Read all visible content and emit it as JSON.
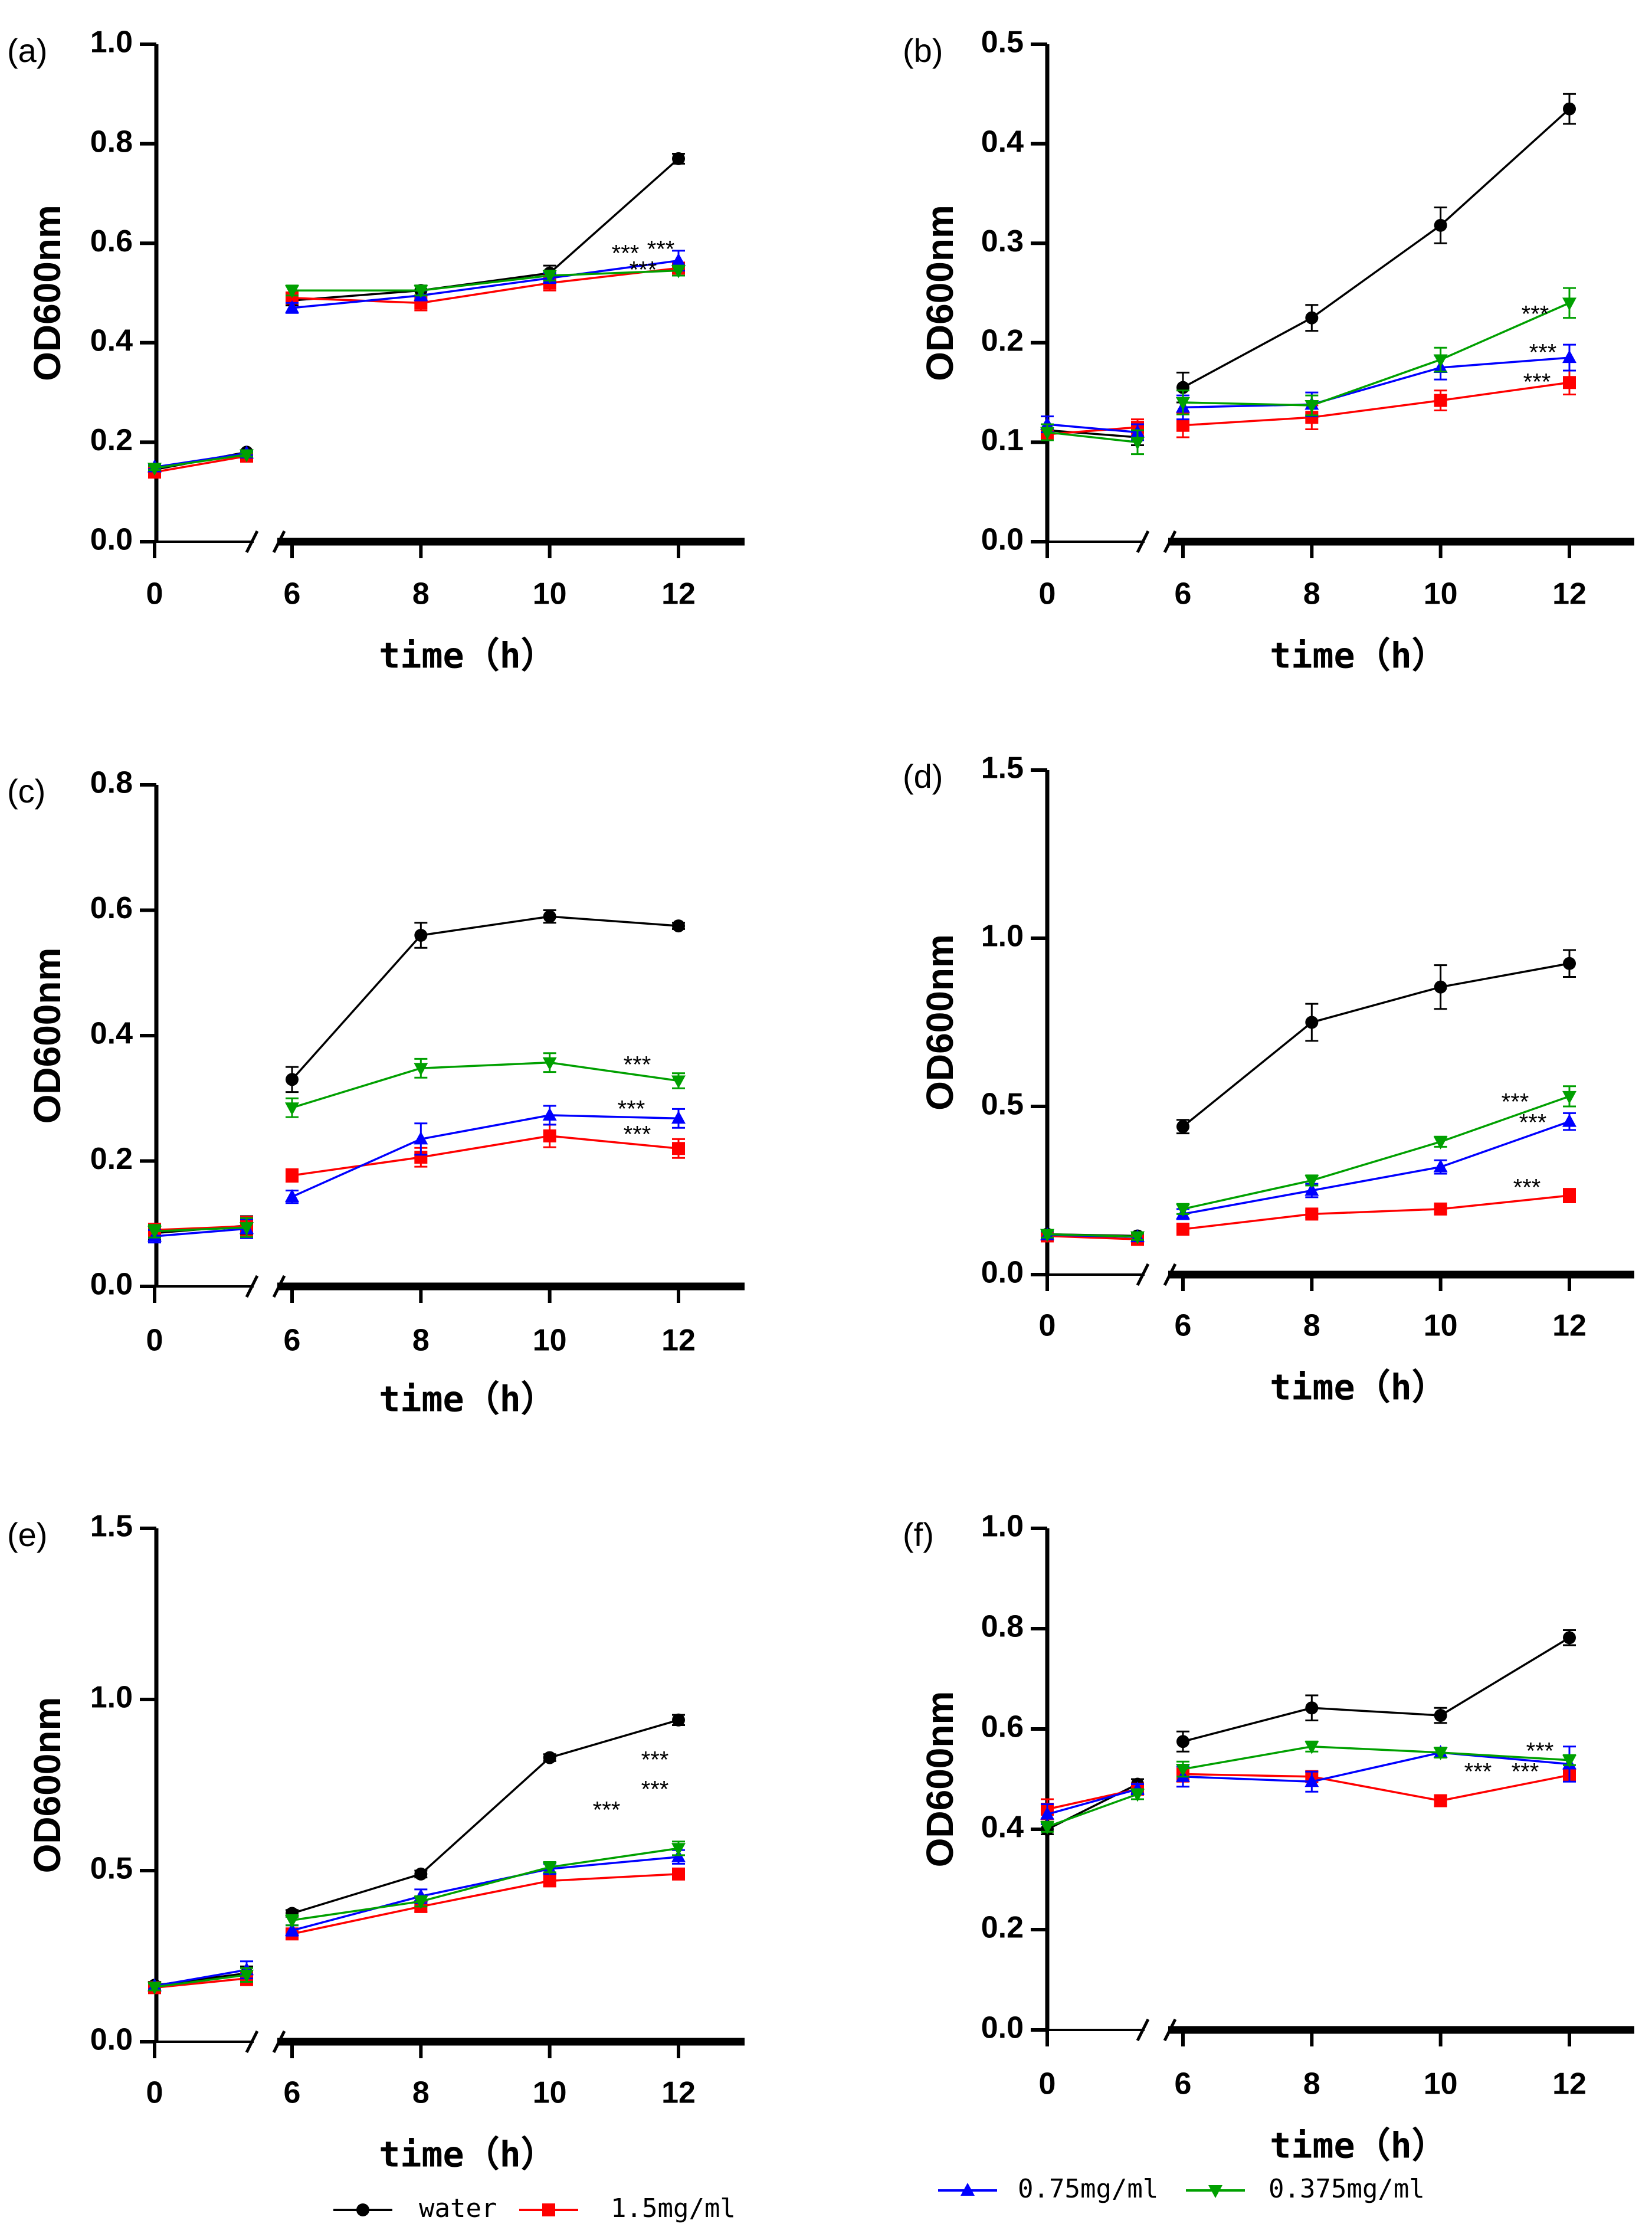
{
  "figure": {
    "x_ticks": [
      "0",
      "6",
      "8",
      "10",
      "12"
    ],
    "xlabel": "time（h）",
    "ylabel": "OD600nm"
  },
  "legend": [
    {
      "label": "water",
      "color": "#000000",
      "marker": "circle"
    },
    {
      "label": "1.5mg/ml",
      "color": "#ff0000",
      "marker": "square"
    },
    {
      "label": "0.75mg/ml",
      "color": "#0000ff",
      "marker": "triangle-up"
    },
    {
      "label": "0.375mg/ml",
      "color": "#00a000",
      "marker": "triangle-down"
    }
  ],
  "chart_data": [
    {
      "panel": "(a)",
      "type": "line",
      "ylabel": "OD600nm",
      "xlabel": "time（h）",
      "x": [
        0,
        5.5,
        6,
        8,
        10,
        12
      ],
      "ylim": [
        0,
        1.0
      ],
      "y_ticks": [
        "0.0",
        "0.2",
        "0.4",
        "0.6",
        "0.8",
        "1.0"
      ],
      "series": [
        {
          "name": "water",
          "values": [
            0.145,
            0.18,
            0.485,
            0.505,
            0.54,
            0.77
          ],
          "err": [
            0.004,
            0.004,
            0.01,
            0.01,
            0.015,
            0.01
          ]
        },
        {
          "name": "1.5mg/ml",
          "values": [
            0.14,
            0.172,
            0.49,
            0.48,
            0.52,
            0.55
          ],
          "err": [
            0.004,
            0.004,
            0.01,
            0.015,
            0.015,
            0.01
          ]
        },
        {
          "name": "0.75mg/ml",
          "values": [
            0.15,
            0.178,
            0.47,
            0.495,
            0.53,
            0.565
          ],
          "err": [
            0.004,
            0.004,
            0.01,
            0.01,
            0.01,
            0.02
          ]
        },
        {
          "name": "0.375mg/ml",
          "values": [
            0.148,
            0.175,
            0.505,
            0.505,
            0.535,
            0.545
          ],
          "err": [
            0.004,
            0.004,
            0.01,
            0.01,
            0.01,
            0.01
          ]
        }
      ],
      "annotations": [
        "***",
        "***",
        "***"
      ]
    },
    {
      "panel": "(b)",
      "type": "line",
      "ylabel": "OD600nm",
      "xlabel": "time（h）",
      "x": [
        0,
        5.5,
        6,
        8,
        10,
        12
      ],
      "ylim": [
        0,
        0.5
      ],
      "y_ticks": [
        "0.0",
        "0.1",
        "0.2",
        "0.3",
        "0.4",
        "0.5"
      ],
      "series": [
        {
          "name": "water",
          "values": [
            0.112,
            0.105,
            0.155,
            0.225,
            0.318,
            0.435
          ],
          "err": [
            0.006,
            0.008,
            0.015,
            0.013,
            0.018,
            0.015
          ]
        },
        {
          "name": "1.5mg/ml",
          "values": [
            0.108,
            0.115,
            0.117,
            0.125,
            0.142,
            0.16
          ],
          "err": [
            0.006,
            0.008,
            0.012,
            0.012,
            0.01,
            0.012
          ]
        },
        {
          "name": "0.75mg/ml",
          "values": [
            0.118,
            0.11,
            0.135,
            0.138,
            0.175,
            0.185
          ],
          "err": [
            0.008,
            0.008,
            0.012,
            0.012,
            0.012,
            0.013
          ]
        },
        {
          "name": "0.375mg/ml",
          "values": [
            0.11,
            0.1,
            0.14,
            0.137,
            0.183,
            0.24
          ],
          "err": [
            0.008,
            0.012,
            0.012,
            0.01,
            0.012,
            0.015
          ]
        }
      ],
      "annotations": [
        "***",
        "***",
        "***"
      ]
    },
    {
      "panel": "(c)",
      "type": "line",
      "ylabel": "OD600nm",
      "xlabel": "time（h）",
      "x": [
        0,
        5.5,
        6,
        8,
        10,
        12
      ],
      "ylim": [
        0,
        0.8
      ],
      "y_ticks": [
        "0.0",
        "0.2",
        "0.4",
        "0.6",
        "0.8"
      ],
      "series": [
        {
          "name": "water",
          "values": [
            0.085,
            0.097,
            0.33,
            0.56,
            0.59,
            0.575
          ],
          "err": [
            0.01,
            0.015,
            0.02,
            0.02,
            0.01,
            0.005
          ]
        },
        {
          "name": "1.5mg/ml",
          "values": [
            0.09,
            0.096,
            0.177,
            0.206,
            0.24,
            0.22
          ],
          "err": [
            0.01,
            0.015,
            0.01,
            0.015,
            0.018,
            0.015
          ]
        },
        {
          "name": "0.75mg/ml",
          "values": [
            0.08,
            0.092,
            0.143,
            0.235,
            0.273,
            0.268
          ],
          "err": [
            0.01,
            0.015,
            0.01,
            0.025,
            0.015,
            0.015
          ]
        },
        {
          "name": "0.375mg/ml",
          "values": [
            0.088,
            0.094,
            0.285,
            0.348,
            0.357,
            0.328
          ],
          "err": [
            0.01,
            0.015,
            0.015,
            0.015,
            0.015,
            0.012
          ]
        }
      ],
      "annotations": [
        "***",
        "***",
        "***"
      ]
    },
    {
      "panel": "(d)",
      "type": "line",
      "ylabel": "OD600nm",
      "xlabel": "time（h）",
      "x": [
        0,
        5.5,
        6,
        8,
        10,
        12
      ],
      "ylim": [
        0,
        1.5
      ],
      "y_ticks": [
        "0.0",
        "0.5",
        "1.0",
        "1.5"
      ],
      "series": [
        {
          "name": "water",
          "values": [
            0.12,
            0.115,
            0.44,
            0.75,
            0.855,
            0.925
          ],
          "err": [
            0.01,
            0.01,
            0.02,
            0.055,
            0.065,
            0.04
          ]
        },
        {
          "name": "1.5mg/ml",
          "values": [
            0.115,
            0.105,
            0.135,
            0.18,
            0.195,
            0.235
          ],
          "err": [
            0.01,
            0.01,
            0.01,
            0.01,
            0.01,
            0.02
          ]
        },
        {
          "name": "0.75mg/ml",
          "values": [
            0.118,
            0.112,
            0.18,
            0.25,
            0.32,
            0.455
          ],
          "err": [
            0.01,
            0.01,
            0.015,
            0.02,
            0.02,
            0.025
          ]
        },
        {
          "name": "0.375mg/ml",
          "values": [
            0.12,
            0.113,
            0.195,
            0.28,
            0.395,
            0.53
          ],
          "err": [
            0.01,
            0.01,
            0.015,
            0.015,
            0.015,
            0.03
          ]
        }
      ],
      "annotations": [
        "***",
        "***",
        "***"
      ]
    },
    {
      "panel": "(e)",
      "type": "line",
      "ylabel": "OD600nm",
      "xlabel": "time（h）",
      "x": [
        0,
        5.5,
        6,
        8,
        10,
        12
      ],
      "ylim": [
        0,
        1.5
      ],
      "y_ticks": [
        "0.0",
        "0.5",
        "1.0",
        "1.5"
      ],
      "series": [
        {
          "name": "water",
          "values": [
            0.165,
            0.2,
            0.375,
            0.49,
            0.83,
            0.94
          ],
          "err": [
            0.01,
            0.02,
            0.01,
            0.01,
            0.01,
            0.015
          ]
        },
        {
          "name": "1.5mg/ml",
          "values": [
            0.158,
            0.185,
            0.315,
            0.395,
            0.47,
            0.49
          ],
          "err": [
            0.01,
            0.02,
            0.015,
            0.015,
            0.015,
            0.015
          ]
        },
        {
          "name": "0.75mg/ml",
          "values": [
            0.163,
            0.21,
            0.325,
            0.425,
            0.505,
            0.54
          ],
          "err": [
            0.01,
            0.025,
            0.015,
            0.02,
            0.015,
            0.02
          ]
        },
        {
          "name": "0.375mg/ml",
          "values": [
            0.16,
            0.195,
            0.355,
            0.41,
            0.51,
            0.565
          ],
          "err": [
            0.01,
            0.02,
            0.015,
            0.015,
            0.015,
            0.02
          ]
        }
      ],
      "annotations": [
        "***",
        "***",
        "***"
      ]
    },
    {
      "panel": "(f)",
      "type": "line",
      "ylabel": "OD600nm",
      "xlabel": "time（h）",
      "x": [
        0,
        5.5,
        6,
        8,
        10,
        12
      ],
      "ylim": [
        0,
        1.0
      ],
      "y_ticks": [
        "0.0",
        "0.2",
        "0.4",
        "0.6",
        "0.8",
        "1.0"
      ],
      "series": [
        {
          "name": "water",
          "values": [
            0.4,
            0.49,
            0.575,
            0.642,
            0.627,
            0.782
          ],
          "err": [
            0.01,
            0.01,
            0.02,
            0.025,
            0.015,
            0.015
          ]
        },
        {
          "name": "1.5mg/ml",
          "values": [
            0.44,
            0.48,
            0.51,
            0.505,
            0.457,
            0.508
          ],
          "err": [
            0.02,
            0.01,
            0.015,
            0.01,
            0.01,
            0.01
          ]
        },
        {
          "name": "0.75mg/ml",
          "values": [
            0.43,
            0.48,
            0.505,
            0.495,
            0.553,
            0.53
          ],
          "err": [
            0.02,
            0.01,
            0.02,
            0.02,
            0.01,
            0.035
          ]
        },
        {
          "name": "0.375mg/ml",
          "values": [
            0.405,
            0.47,
            0.52,
            0.565,
            0.553,
            0.538
          ],
          "err": [
            0.01,
            0.01,
            0.015,
            0.01,
            0.01,
            0.01
          ]
        }
      ],
      "annotations": [
        "***",
        "***",
        "***"
      ]
    }
  ]
}
